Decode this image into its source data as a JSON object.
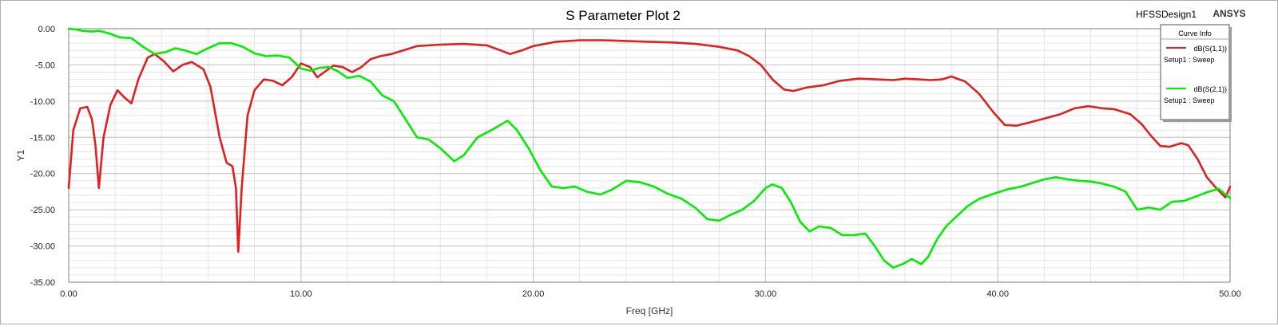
{
  "header": {
    "title": "S Parameter Plot 2",
    "design": "HFSSDesign1",
    "brand": "ANSYS"
  },
  "legend": {
    "title": "Curve Info",
    "items": [
      {
        "name": "dB(S(1,1))",
        "setup": "Setup1 : Sweep",
        "color": "#e02020"
      },
      {
        "name": "dB(S(2,1))",
        "setup": "Setup1 : Sweep",
        "color": "#00ee00"
      }
    ]
  },
  "chart_data": {
    "type": "line",
    "title": "S Parameter Plot 2",
    "xlabel": "Freq [GHz]",
    "ylabel": "Y1",
    "xlim": [
      0,
      50
    ],
    "ylim": [
      -35,
      0
    ],
    "xticks": [
      "0.00",
      "10.00",
      "20.00",
      "30.00",
      "40.00",
      "50.00"
    ],
    "yticks": [
      "0.00",
      "-5.00",
      "-10.00",
      "-15.00",
      "-20.00",
      "-25.00",
      "-30.00",
      "-35.00"
    ],
    "grid": true,
    "legend_position": "top-right",
    "series": [
      {
        "name": "dB(S(1,1))",
        "color": "#e02020",
        "x": [
          0,
          0.2,
          0.5,
          0.8,
          1.0,
          1.15,
          1.3,
          1.5,
          1.8,
          2.1,
          2.4,
          2.7,
          3.0,
          3.4,
          3.7,
          4.1,
          4.5,
          4.9,
          5.3,
          5.8,
          6.1,
          6.5,
          6.8,
          7.05,
          7.2,
          7.3,
          7.45,
          7.7,
          8.0,
          8.4,
          8.8,
          9.2,
          9.6,
          10.0,
          10.4,
          10.7,
          11.0,
          11.4,
          11.8,
          12.2,
          12.6,
          13.0,
          13.4,
          13.9,
          14.4,
          15.0,
          16.0,
          17.0,
          18.0,
          18.6,
          19.0,
          19.5,
          20.0,
          21.0,
          22.0,
          23.0,
          24.0,
          25.0,
          26.0,
          27.0,
          28.0,
          28.8,
          29.3,
          29.8,
          30.3,
          30.8,
          31.2,
          31.8,
          32.5,
          33.2,
          34.0,
          34.8,
          35.5,
          36.0,
          36.6,
          37.1,
          37.6,
          38.0,
          38.6,
          39.2,
          39.8,
          40.3,
          40.8,
          41.3,
          42.0,
          42.7,
          43.3,
          43.9,
          44.5,
          45.0,
          45.7,
          46.2,
          46.6,
          47.0,
          47.4,
          47.9,
          48.2,
          48.6,
          49.0,
          49.4,
          49.8,
          50.0
        ],
        "y": [
          -22.0,
          -14.0,
          -11.0,
          -10.8,
          -12.5,
          -16.0,
          -22.0,
          -15.0,
          -10.5,
          -8.5,
          -9.5,
          -10.3,
          -7.0,
          -4.0,
          -3.5,
          -4.5,
          -5.9,
          -5.0,
          -4.6,
          -5.6,
          -8.0,
          -15.0,
          -18.5,
          -19.0,
          -22.0,
          -30.8,
          -22.0,
          -12.0,
          -8.5,
          -7.0,
          -7.2,
          -7.8,
          -6.7,
          -4.8,
          -5.3,
          -6.7,
          -6.0,
          -5.1,
          -5.3,
          -6.0,
          -5.3,
          -4.2,
          -3.8,
          -3.5,
          -3.0,
          -2.4,
          -2.2,
          -2.1,
          -2.3,
          -3.0,
          -3.5,
          -3.0,
          -2.4,
          -1.8,
          -1.6,
          -1.6,
          -1.7,
          -1.8,
          -1.9,
          -2.1,
          -2.5,
          -3.0,
          -3.8,
          -5.0,
          -7.0,
          -8.4,
          -8.6,
          -8.1,
          -7.8,
          -7.2,
          -6.9,
          -7.0,
          -7.1,
          -6.9,
          -7.0,
          -7.1,
          -7.0,
          -6.6,
          -7.3,
          -9.0,
          -11.5,
          -13.3,
          -13.4,
          -13.0,
          -12.4,
          -11.8,
          -11.0,
          -10.7,
          -11.0,
          -11.1,
          -11.8,
          -13.2,
          -14.8,
          -16.2,
          -16.3,
          -15.8,
          -16.1,
          -18.0,
          -20.5,
          -22.0,
          -23.3,
          -21.8
        ]
      },
      {
        "name": "dB(S(2,1))",
        "color": "#00ee00",
        "x": [
          0,
          0.3,
          0.6,
          1.0,
          1.3,
          1.7,
          2.2,
          2.7,
          3.2,
          3.7,
          4.2,
          4.6,
          5.0,
          5.5,
          6.0,
          6.5,
          7.0,
          7.5,
          8.0,
          8.5,
          9.0,
          9.5,
          10.0,
          10.4,
          10.8,
          11.2,
          11.6,
          12.0,
          12.5,
          13.0,
          13.5,
          14.0,
          14.5,
          15.0,
          15.5,
          16.0,
          16.6,
          17.0,
          17.6,
          18.2,
          18.9,
          19.3,
          19.8,
          20.3,
          20.8,
          21.3,
          21.8,
          22.3,
          22.9,
          23.4,
          24.0,
          24.6,
          25.2,
          25.8,
          26.4,
          27.0,
          27.5,
          28.0,
          28.5,
          29.0,
          29.5,
          30.0,
          30.3,
          30.7,
          31.1,
          31.5,
          31.9,
          32.3,
          32.8,
          33.3,
          33.8,
          34.3,
          34.7,
          35.1,
          35.5,
          35.9,
          36.3,
          36.7,
          37.0,
          37.4,
          37.8,
          38.2,
          38.7,
          39.2,
          39.8,
          40.4,
          41.0,
          41.5,
          42.0,
          42.5,
          43.0,
          43.5,
          44.0,
          44.5,
          45.0,
          45.5,
          46.0,
          46.5,
          47.0,
          47.5,
          48.0,
          48.5,
          49.0,
          49.5,
          50.0
        ],
        "y": [
          0.0,
          -0.1,
          -0.3,
          -0.4,
          -0.3,
          -0.6,
          -1.2,
          -1.3,
          -2.5,
          -3.5,
          -3.2,
          -2.7,
          -3.0,
          -3.5,
          -2.7,
          -2.0,
          -2.0,
          -2.5,
          -3.4,
          -3.8,
          -3.7,
          -4.0,
          -5.5,
          -5.8,
          -5.4,
          -5.3,
          -5.9,
          -6.8,
          -6.5,
          -7.3,
          -9.2,
          -10.0,
          -12.5,
          -15.0,
          -15.3,
          -16.5,
          -18.3,
          -17.5,
          -15.0,
          -14.0,
          -12.7,
          -14.0,
          -16.5,
          -19.5,
          -21.8,
          -22.0,
          -21.8,
          -22.5,
          -22.9,
          -22.2,
          -21.0,
          -21.2,
          -21.8,
          -22.8,
          -23.5,
          -24.8,
          -26.3,
          -26.5,
          -25.7,
          -25.0,
          -23.8,
          -22.0,
          -21.5,
          -22.0,
          -24.0,
          -26.7,
          -28.0,
          -27.3,
          -27.5,
          -28.5,
          -28.5,
          -28.3,
          -30.0,
          -32.0,
          -33.0,
          -32.5,
          -31.8,
          -32.5,
          -31.5,
          -29.0,
          -27.2,
          -26.0,
          -24.5,
          -23.5,
          -22.8,
          -22.2,
          -21.8,
          -21.3,
          -20.8,
          -20.5,
          -20.8,
          -21.0,
          -21.1,
          -21.4,
          -21.8,
          -22.5,
          -25.0,
          -24.7,
          -25.0,
          -23.9,
          -23.8,
          -23.2,
          -22.6,
          -22.1,
          -23.4
        ]
      }
    ]
  }
}
